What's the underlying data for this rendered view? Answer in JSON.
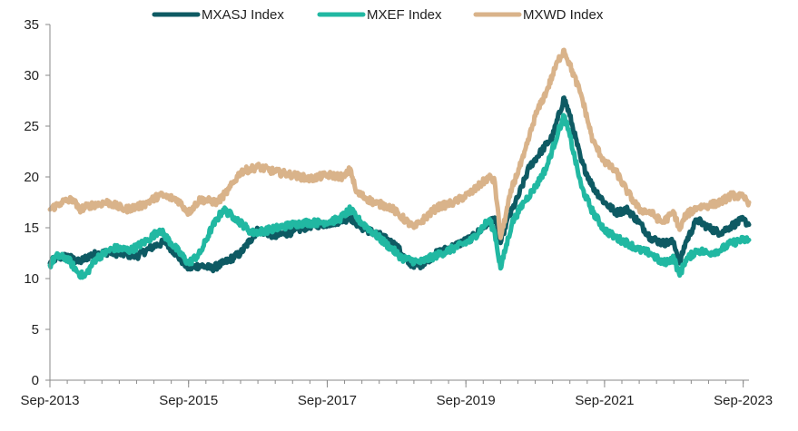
{
  "chart_data": {
    "type": "line",
    "title": "",
    "xlabel": "",
    "ylabel": "",
    "ylim": [
      0,
      35
    ],
    "yticks": [
      0,
      5,
      10,
      15,
      20,
      25,
      30,
      35
    ],
    "xlim": [
      "2013-09",
      "2023-10"
    ],
    "xticks": [
      "Sep-2013",
      "Sep-2015",
      "Sep-2017",
      "Sep-2019",
      "Sep-2021",
      "Sep-2023"
    ],
    "grid": false,
    "legend_position": "top-center",
    "series": [
      {
        "name": "MXASJ Index",
        "color": "#0e5a63",
        "points": [
          [
            "2013-09",
            11.5
          ],
          [
            "2013-10",
            12.0
          ],
          [
            "2013-12",
            12.2
          ],
          [
            "2014-02",
            11.6
          ],
          [
            "2014-04",
            12.3
          ],
          [
            "2014-07",
            12.6
          ],
          [
            "2014-10",
            12.4
          ],
          [
            "2014-12",
            12.2
          ],
          [
            "2015-03",
            13.2
          ],
          [
            "2015-05",
            13.6
          ],
          [
            "2015-07",
            12.3
          ],
          [
            "2015-09",
            11.0
          ],
          [
            "2015-11",
            11.3
          ],
          [
            "2016-01",
            11.0
          ],
          [
            "2016-03",
            11.5
          ],
          [
            "2016-06",
            12.5
          ],
          [
            "2016-09",
            14.8
          ],
          [
            "2016-12",
            14.2
          ],
          [
            "2017-03",
            14.6
          ],
          [
            "2017-06",
            15.2
          ],
          [
            "2017-09",
            15.4
          ],
          [
            "2017-12",
            15.8
          ],
          [
            "2018-01",
            16.0
          ],
          [
            "2018-03",
            15.0
          ],
          [
            "2018-06",
            14.3
          ],
          [
            "2018-09",
            13.2
          ],
          [
            "2018-11",
            11.5
          ],
          [
            "2019-01",
            11.3
          ],
          [
            "2019-04",
            12.5
          ],
          [
            "2019-07",
            13.2
          ],
          [
            "2019-10",
            14.0
          ],
          [
            "2020-01",
            15.5
          ],
          [
            "2020-02",
            16.0
          ],
          [
            "2020-03",
            13.5
          ],
          [
            "2020-04",
            15.5
          ],
          [
            "2020-06",
            18.0
          ],
          [
            "2020-08",
            21.0
          ],
          [
            "2020-10",
            22.5
          ],
          [
            "2020-12",
            24.0
          ],
          [
            "2021-02",
            27.8
          ],
          [
            "2021-03",
            26.0
          ],
          [
            "2021-05",
            21.5
          ],
          [
            "2021-07",
            19.0
          ],
          [
            "2021-09",
            17.5
          ],
          [
            "2021-11",
            16.5
          ],
          [
            "2022-01",
            16.8
          ],
          [
            "2022-03",
            15.5
          ],
          [
            "2022-05",
            14.0
          ],
          [
            "2022-07",
            13.5
          ],
          [
            "2022-09",
            13.6
          ],
          [
            "2022-10",
            11.5
          ],
          [
            "2022-11",
            13.5
          ],
          [
            "2023-01",
            15.8
          ],
          [
            "2023-03",
            15.0
          ],
          [
            "2023-05",
            14.5
          ],
          [
            "2023-07",
            15.2
          ],
          [
            "2023-09",
            15.8
          ],
          [
            "2023-10",
            15.3
          ]
        ]
      },
      {
        "name": "MXEF Index",
        "color": "#21b8a2",
        "points": [
          [
            "2013-09",
            11.3
          ],
          [
            "2013-10",
            12.2
          ],
          [
            "2013-12",
            12.0
          ],
          [
            "2014-02",
            10.5
          ],
          [
            "2014-03",
            10.2
          ],
          [
            "2014-05",
            12.0
          ],
          [
            "2014-08",
            13.0
          ],
          [
            "2014-11",
            12.8
          ],
          [
            "2015-02",
            13.8
          ],
          [
            "2015-04",
            14.8
          ],
          [
            "2015-06",
            13.5
          ],
          [
            "2015-09",
            11.5
          ],
          [
            "2015-11",
            12.5
          ],
          [
            "2016-01",
            15.0
          ],
          [
            "2016-03",
            16.8
          ],
          [
            "2016-05",
            16.0
          ],
          [
            "2016-08",
            14.5
          ],
          [
            "2016-11",
            14.8
          ],
          [
            "2017-02",
            15.2
          ],
          [
            "2017-05",
            15.5
          ],
          [
            "2017-08",
            15.5
          ],
          [
            "2017-11",
            15.8
          ],
          [
            "2018-01",
            16.8
          ],
          [
            "2018-02",
            16.0
          ],
          [
            "2018-05",
            14.5
          ],
          [
            "2018-08",
            13.0
          ],
          [
            "2018-10",
            12.0
          ],
          [
            "2019-01",
            11.6
          ],
          [
            "2019-04",
            12.3
          ],
          [
            "2019-07",
            13.0
          ],
          [
            "2019-10",
            13.8
          ],
          [
            "2020-01",
            15.8
          ],
          [
            "2020-02",
            14.5
          ],
          [
            "2020-03",
            11.0
          ],
          [
            "2020-05",
            15.5
          ],
          [
            "2020-07",
            17.5
          ],
          [
            "2020-09",
            19.0
          ],
          [
            "2020-11",
            21.0
          ],
          [
            "2021-01",
            24.5
          ],
          [
            "2021-02",
            26.0
          ],
          [
            "2021-03",
            24.0
          ],
          [
            "2021-05",
            19.0
          ],
          [
            "2021-07",
            16.5
          ],
          [
            "2021-09",
            14.8
          ],
          [
            "2021-11",
            14.0
          ],
          [
            "2022-01",
            13.5
          ],
          [
            "2022-03",
            12.8
          ],
          [
            "2022-05",
            12.5
          ],
          [
            "2022-07",
            11.5
          ],
          [
            "2022-09",
            12.0
          ],
          [
            "2022-10",
            10.3
          ],
          [
            "2022-11",
            11.8
          ],
          [
            "2023-01",
            12.8
          ],
          [
            "2023-03",
            12.5
          ],
          [
            "2023-05",
            12.8
          ],
          [
            "2023-07",
            13.5
          ],
          [
            "2023-09",
            13.8
          ],
          [
            "2023-10",
            13.8
          ]
        ]
      },
      {
        "name": "MXWD Index",
        "color": "#d9b38a",
        "points": [
          [
            "2013-09",
            16.8
          ],
          [
            "2013-11",
            17.5
          ],
          [
            "2014-01",
            17.8
          ],
          [
            "2014-02",
            16.8
          ],
          [
            "2014-04",
            17.2
          ],
          [
            "2014-07",
            17.5
          ],
          [
            "2014-10",
            16.8
          ],
          [
            "2015-01",
            17.2
          ],
          [
            "2015-04",
            18.2
          ],
          [
            "2015-07",
            17.8
          ],
          [
            "2015-09",
            16.5
          ],
          [
            "2015-11",
            17.8
          ],
          [
            "2016-02",
            17.5
          ],
          [
            "2016-04",
            18.8
          ],
          [
            "2016-06",
            20.5
          ],
          [
            "2016-09",
            21.0
          ],
          [
            "2016-12",
            20.5
          ],
          [
            "2017-03",
            20.2
          ],
          [
            "2017-06",
            19.8
          ],
          [
            "2017-09",
            20.2
          ],
          [
            "2017-12",
            20.0
          ],
          [
            "2018-01",
            20.8
          ],
          [
            "2018-02",
            18.5
          ],
          [
            "2018-05",
            17.5
          ],
          [
            "2018-08",
            17.0
          ],
          [
            "2018-10",
            16.0
          ],
          [
            "2018-12",
            15.0
          ],
          [
            "2019-01",
            15.5
          ],
          [
            "2019-04",
            17.0
          ],
          [
            "2019-07",
            17.5
          ],
          [
            "2019-10",
            18.5
          ],
          [
            "2020-01",
            20.0
          ],
          [
            "2020-02",
            19.5
          ],
          [
            "2020-03",
            14.0
          ],
          [
            "2020-05",
            19.0
          ],
          [
            "2020-07",
            22.0
          ],
          [
            "2020-09",
            26.0
          ],
          [
            "2020-11",
            28.5
          ],
          [
            "2021-01",
            31.5
          ],
          [
            "2021-02",
            32.5
          ],
          [
            "2021-03",
            31.0
          ],
          [
            "2021-05",
            28.0
          ],
          [
            "2021-07",
            23.5
          ],
          [
            "2021-09",
            21.5
          ],
          [
            "2021-11",
            20.5
          ],
          [
            "2022-01",
            18.5
          ],
          [
            "2022-03",
            16.8
          ],
          [
            "2022-05",
            16.5
          ],
          [
            "2022-07",
            15.5
          ],
          [
            "2022-09",
            16.5
          ],
          [
            "2022-10",
            14.8
          ],
          [
            "2022-11",
            16.2
          ],
          [
            "2023-01",
            17.0
          ],
          [
            "2023-03",
            17.2
          ],
          [
            "2023-05",
            17.5
          ],
          [
            "2023-07",
            18.2
          ],
          [
            "2023-09",
            18.0
          ],
          [
            "2023-10",
            17.5
          ]
        ]
      }
    ]
  }
}
